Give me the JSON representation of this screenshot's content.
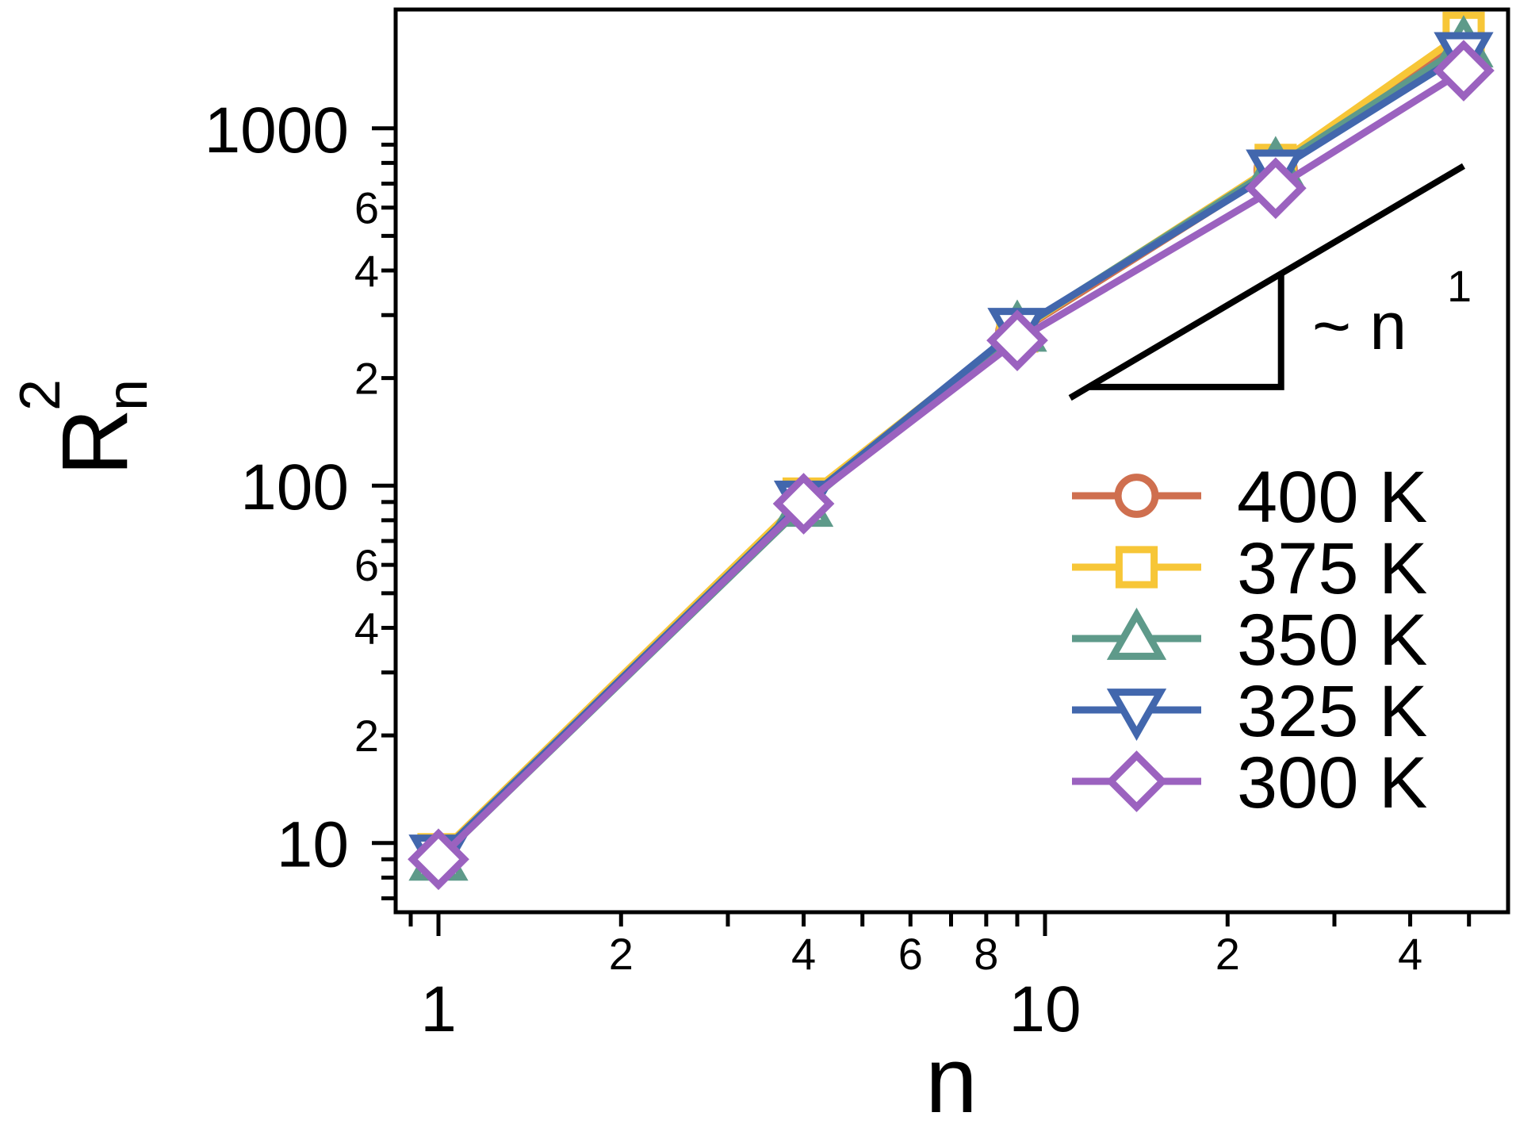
{
  "chart_data": {
    "type": "line",
    "xlabel": "n",
    "ylabel_main": "R",
    "ylabel_sub": "n",
    "ylabel_sup": "2",
    "x_scale": "log",
    "y_scale": "log",
    "xlim": [
      0.85,
      58
    ],
    "ylim": [
      6.4,
      2150
    ],
    "x_major_ticks": [
      {
        "value": 1,
        "label": "1"
      },
      {
        "value": 10,
        "label": "10"
      }
    ],
    "x_minor_labels": [
      {
        "value": 2,
        "label": "2"
      },
      {
        "value": 4,
        "label": "4"
      },
      {
        "value": 6,
        "label": "6"
      },
      {
        "value": 8,
        "label": "8"
      },
      {
        "value": 20,
        "label": "2"
      },
      {
        "value": 40,
        "label": "4"
      }
    ],
    "y_major_ticks": [
      {
        "value": 10,
        "label": "10"
      },
      {
        "value": 100,
        "label": "100"
      },
      {
        "value": 1000,
        "label": "1000"
      }
    ],
    "y_minor_labels": [
      {
        "value": 20,
        "label": "2"
      },
      {
        "value": 40,
        "label": "4"
      },
      {
        "value": 60,
        "label": "6"
      },
      {
        "value": 200,
        "label": "2"
      },
      {
        "value": 400,
        "label": "4"
      },
      {
        "value": 600,
        "label": "6"
      }
    ],
    "x": [
      1,
      4,
      9,
      24,
      49
    ],
    "series": [
      {
        "name": "400 K",
        "marker": "circle",
        "color": "#cf6f4f",
        "values": [
          9.2,
          90,
          268,
          765,
          1750
        ]
      },
      {
        "name": "375 K",
        "marker": "square",
        "color": "#f7c637",
        "values": [
          9.3,
          92,
          270,
          790,
          1850
        ]
      },
      {
        "name": "350 K",
        "marker": "triangle-up",
        "color": "#5e9a8a",
        "values": [
          9.0,
          88,
          272,
          780,
          1700
        ]
      },
      {
        "name": "325 K",
        "marker": "triangle-down",
        "color": "#4267ad",
        "values": [
          9.2,
          90,
          274,
          760,
          1620
        ]
      },
      {
        "name": "300 K",
        "marker": "diamond",
        "color": "#9b62bf",
        "values": [
          9.0,
          89,
          255,
          680,
          1450
        ]
      }
    ],
    "legend_position": "bottom-right",
    "slope_annotation": {
      "text": "~ n",
      "exponent": "1",
      "slope": 1
    }
  }
}
